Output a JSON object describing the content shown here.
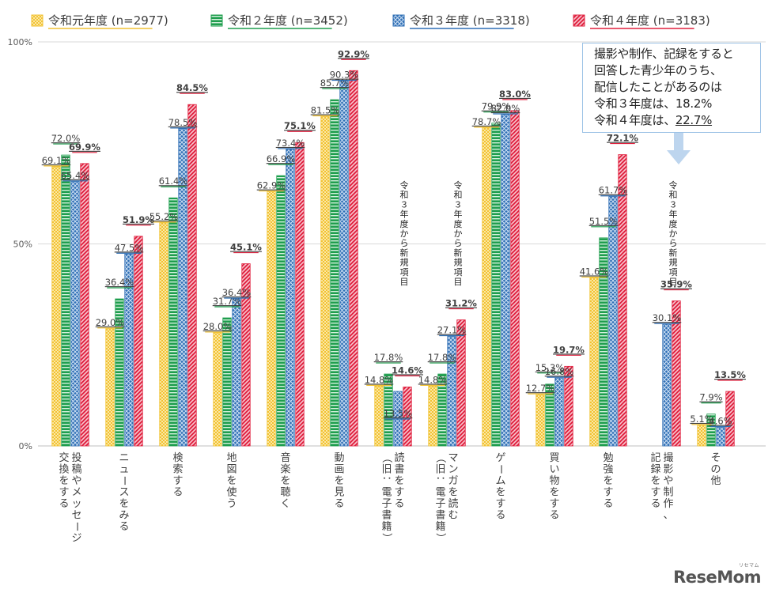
{
  "chart_data": {
    "type": "bar",
    "categories": [
      [
        "投稿やメッセージ",
        "交換をする"
      ],
      [
        "ニュースをみる"
      ],
      [
        "検索する"
      ],
      [
        "地図を使う"
      ],
      [
        "音楽を聴く"
      ],
      [
        "動画を見る"
      ],
      [
        "読書をする",
        "（旧：電子書籍）"
      ],
      [
        "マンガを読む",
        "（旧：電子書籍）"
      ],
      [
        "ゲームをする"
      ],
      [
        "買い物をする"
      ],
      [
        "勉強をする"
      ],
      [
        "撮影や制作、",
        "記録をする"
      ],
      [
        "その他"
      ]
    ],
    "series": [
      {
        "name": "令和元年度",
        "n": "(n=2977)",
        "legend": "令和元年度 (n=2977)",
        "color": "#f2c233",
        "values": [
          69.1,
          29.0,
          55.2,
          28.0,
          62.9,
          81.5,
          14.8,
          14.8,
          78.7,
          12.7,
          41.6,
          null,
          5.1
        ]
      },
      {
        "name": "令和２年度",
        "n": "(n=3452)",
        "legend": "令和２年度 (n=3452)",
        "color": "#1f9e4e",
        "values": [
          72.0,
          36.4,
          61.4,
          31.7,
          66.9,
          85.7,
          17.8,
          17.8,
          79.9,
          15.3,
          51.5,
          null,
          7.9
        ]
      },
      {
        "name": "令和３年度",
        "n": "(n=3318)",
        "legend": "令和３年度 (n=3318)",
        "color": "#2f6fb5",
        "values": [
          65.4,
          47.5,
          78.5,
          36.4,
          73.4,
          90.3,
          13.5,
          27.1,
          82.0,
          16.8,
          61.7,
          30.1,
          4.6
        ]
      },
      {
        "name": "令和４年度",
        "n": "(n=3183)",
        "legend": "令和４年度 (n=3183)",
        "color": "#e0213f",
        "values": [
          69.9,
          51.9,
          84.5,
          45.1,
          75.1,
          92.9,
          14.6,
          31.2,
          83.0,
          19.7,
          72.1,
          35.9,
          13.5
        ]
      }
    ],
    "labels": [
      [
        "69.1%",
        "72.0%",
        "65.4%",
        "69.9%"
      ],
      [
        "29.0%",
        "36.4%",
        "47.5%",
        "51.9%"
      ],
      [
        "55.2%",
        "61.4%",
        "78.5%",
        "84.5%"
      ],
      [
        "28.0%",
        "31.7%",
        "36.4%",
        "45.1%"
      ],
      [
        "62.9%",
        "66.9%",
        "73.4%",
        "75.1%"
      ],
      [
        "81.5%",
        "85.7%",
        "90.3%",
        "92.9%"
      ],
      [
        "14.8%",
        "17.8%",
        "13.5%",
        "14.6%"
      ],
      [
        "14.8%",
        "17.8%",
        "27.1%",
        "31.2%"
      ],
      [
        "78.7%",
        "79.9%",
        "82.0%",
        "83.0%"
      ],
      [
        "12.7%",
        "15.3%",
        "16.8%",
        "19.7%"
      ],
      [
        "41.6%",
        "51.5%",
        "61.7%",
        "72.1%"
      ],
      [
        null,
        null,
        "30.1%",
        "35.9%"
      ],
      [
        "5.1%",
        "7.9%",
        "4.6%",
        "13.5%"
      ]
    ],
    "annotations": [
      {
        "category": 6,
        "text": "令和３年度から新規項目"
      },
      {
        "category": 7,
        "text": "令和３年度から新規項目"
      },
      {
        "category": 11,
        "text": "令和３年度から新規項目"
      }
    ],
    "ylim": [
      0,
      100
    ],
    "yticks": [
      "0%",
      "50%",
      "100%"
    ],
    "ytick_values": [
      0,
      50,
      100
    ],
    "grid": true,
    "legend_position": "top"
  },
  "callout": {
    "line1": "撮影や制作、記録をすると",
    "line2": "回答した青少年のうち、",
    "line3": "配信したことがあるのは",
    "line4": "令和３年度は、18.2%",
    "line5_prefix": "令和４年度は、",
    "line5_value": "22.7%"
  },
  "brand": {
    "name": "ReseMom",
    "sub": "リセマム"
  }
}
